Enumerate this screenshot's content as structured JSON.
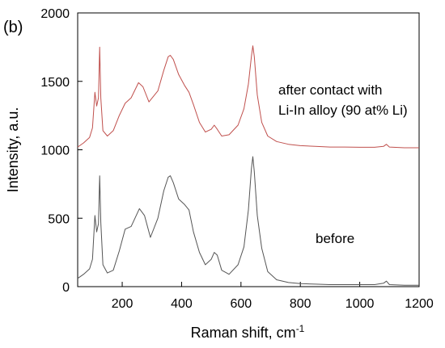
{
  "chart_data": {
    "type": "line",
    "panel_label": "(b)",
    "xlabel": "Raman shift, cm",
    "xlabel_sup": "-1",
    "ylabel": "Intensity, a.u.",
    "xlim": [
      50,
      1200
    ],
    "ylim": [
      0,
      2000
    ],
    "x_ticks": [
      200,
      400,
      600,
      800,
      1000,
      1200
    ],
    "y_ticks": [
      0,
      500,
      1000,
      1500,
      2000
    ],
    "annotations": [
      {
        "text": "after contact with",
        "series": "after"
      },
      {
        "text": "Li-In alloy (90 at% Li)",
        "series": "after"
      },
      {
        "text": "before",
        "series": "before"
      }
    ],
    "series": [
      {
        "key": "after",
        "color": "#c0504d",
        "x": [
          50,
          70,
          90,
          100,
          108,
          114,
          120,
          124,
          128,
          135,
          150,
          170,
          190,
          210,
          230,
          255,
          270,
          290,
          320,
          340,
          355,
          362,
          372,
          390,
          410,
          425,
          440,
          460,
          480,
          500,
          510,
          520,
          535,
          560,
          590,
          610,
          625,
          635,
          640,
          645,
          655,
          670,
          690,
          720,
          760,
          800,
          850,
          900,
          950,
          1000,
          1050,
          1080,
          1090,
          1100,
          1150,
          1200
        ],
        "y": [
          1020,
          1050,
          1090,
          1160,
          1420,
          1320,
          1380,
          1750,
          1380,
          1140,
          1100,
          1140,
          1250,
          1340,
          1380,
          1490,
          1460,
          1350,
          1430,
          1580,
          1680,
          1690,
          1660,
          1550,
          1470,
          1420,
          1330,
          1200,
          1130,
          1150,
          1180,
          1150,
          1100,
          1110,
          1180,
          1300,
          1480,
          1680,
          1760,
          1680,
          1400,
          1200,
          1100,
          1060,
          1040,
          1030,
          1025,
          1020,
          1020,
          1018,
          1018,
          1025,
          1040,
          1020,
          1015,
          1015
        ]
      },
      {
        "key": "before",
        "color": "#555555",
        "x": [
          50,
          70,
          90,
          100,
          108,
          114,
          120,
          124,
          128,
          135,
          150,
          170,
          190,
          210,
          230,
          258,
          275,
          295,
          320,
          340,
          355,
          362,
          372,
          390,
          410,
          425,
          440,
          460,
          480,
          500,
          510,
          520,
          535,
          560,
          590,
          610,
          625,
          635,
          640,
          645,
          655,
          670,
          690,
          720,
          760,
          800,
          850,
          900,
          950,
          1000,
          1050,
          1080,
          1090,
          1100,
          1150,
          1200
        ],
        "y": [
          60,
          90,
          130,
          200,
          520,
          400,
          460,
          810,
          470,
          160,
          100,
          120,
          260,
          420,
          440,
          570,
          520,
          360,
          500,
          700,
          800,
          810,
          760,
          640,
          600,
          560,
          400,
          250,
          160,
          200,
          250,
          230,
          120,
          90,
          160,
          290,
          560,
          860,
          950,
          840,
          520,
          280,
          110,
          50,
          30,
          22,
          18,
          15,
          15,
          15,
          15,
          25,
          40,
          15,
          10,
          10
        ]
      }
    ]
  }
}
